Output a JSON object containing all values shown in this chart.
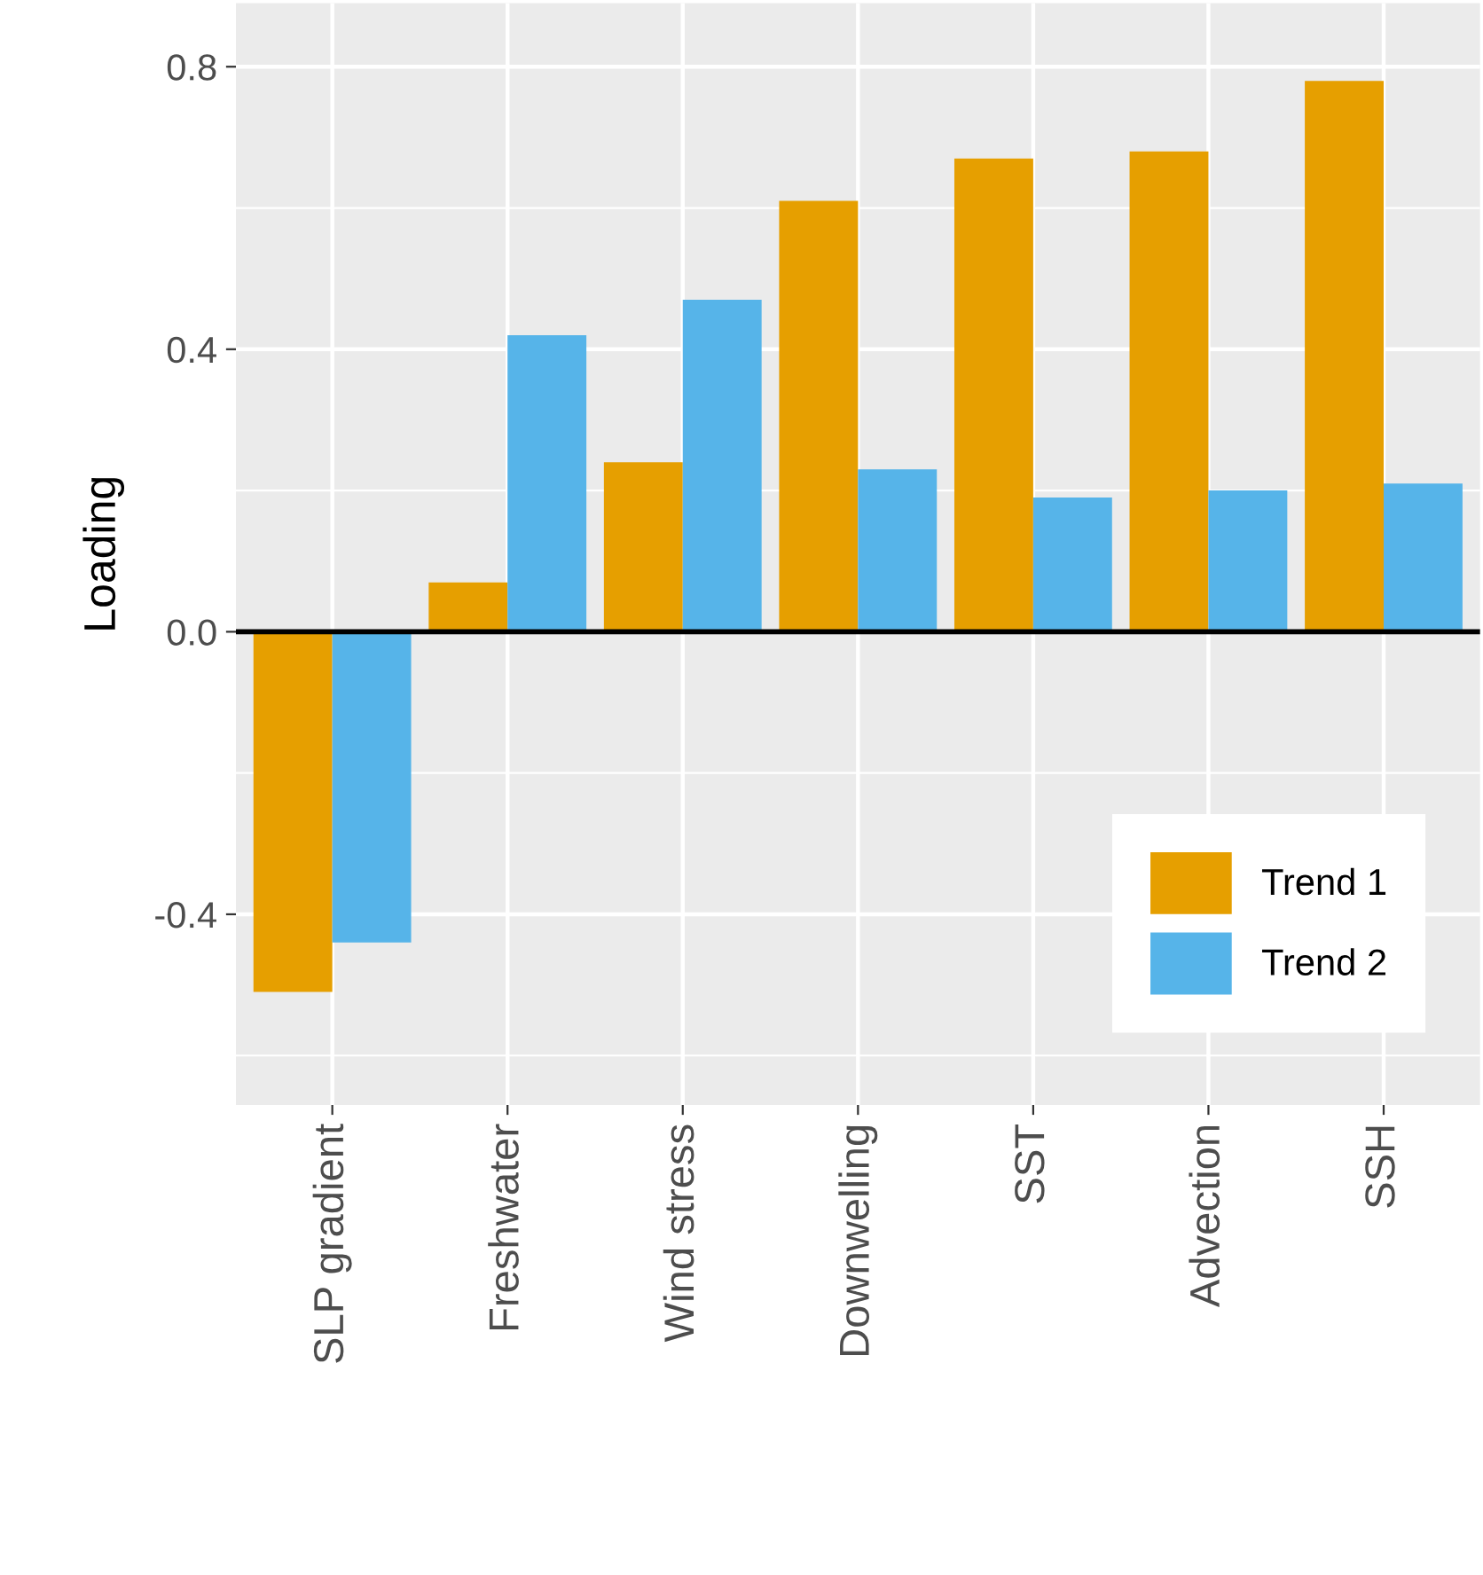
{
  "chart_data": {
    "type": "bar",
    "ylabel": "Loading",
    "categories": [
      "SLP gradient",
      "Freshwater",
      "Wind stress",
      "Downwelling",
      "SST",
      "Advection",
      "SSH"
    ],
    "series": [
      {
        "name": "Trend 1",
        "color": "#e69f00",
        "values": [
          -0.51,
          0.07,
          0.24,
          0.61,
          0.67,
          0.68,
          0.78
        ]
      },
      {
        "name": "Trend 2",
        "color": "#56b4e9",
        "values": [
          -0.44,
          0.42,
          0.47,
          0.23,
          0.19,
          0.2,
          0.21
        ]
      }
    ],
    "ylim": [
      -0.67,
      0.89
    ],
    "yticks": [
      {
        "value": -0.4,
        "label": "-0.4"
      },
      {
        "value": 0,
        "label": "0.0"
      },
      0.4,
      0.8
    ],
    "ref_lines": [
      {
        "axis": "y",
        "value": 0,
        "color": "#000000"
      }
    ],
    "grid": true,
    "legend": "bottom right"
  }
}
